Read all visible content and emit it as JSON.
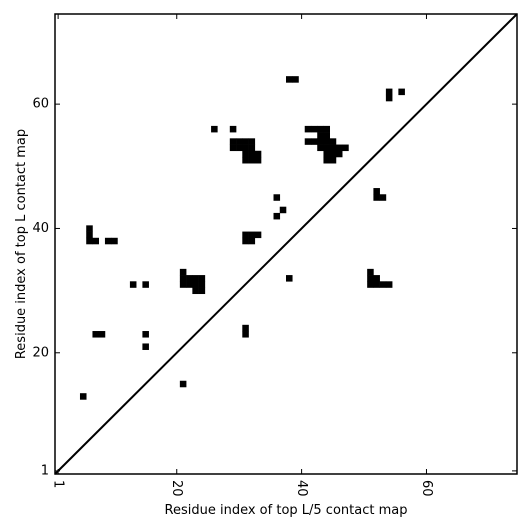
{
  "chart_data": {
    "type": "scatter",
    "marker": "square",
    "xlabel": "Residue index of top L/5 contact map",
    "ylabel": "Residue index of top L contact map",
    "xlim": [
      0.5,
      74.5
    ],
    "ylim": [
      0.5,
      74.5
    ],
    "xticks": [
      1,
      20,
      40,
      60
    ],
    "yticks": [
      1,
      20,
      40,
      60
    ],
    "diagonal": true,
    "series": [
      {
        "color": "#000000",
        "x": [
          5,
          21,
          15,
          15,
          7,
          8,
          13,
          15,
          21,
          21,
          22,
          23,
          24,
          21,
          22,
          23,
          24,
          23,
          24,
          31,
          31,
          38,
          6,
          6,
          6,
          7,
          9,
          10,
          31,
          31,
          32,
          32,
          33,
          36,
          37,
          36,
          26,
          29,
          29,
          29,
          30,
          30,
          31,
          31,
          32,
          32,
          31,
          31,
          32,
          32,
          33,
          33,
          38,
          39,
          41,
          42,
          43,
          44,
          43,
          44,
          41,
          42,
          43,
          44,
          45,
          43,
          44,
          45,
          46,
          47,
          44,
          45,
          46,
          44,
          45,
          54,
          54,
          56,
          52,
          52,
          53,
          51,
          51,
          52,
          51,
          52,
          53,
          54
        ],
        "values": [
          13,
          15,
          21,
          23,
          23,
          23,
          31,
          31,
          33,
          32,
          32,
          32,
          32,
          31,
          31,
          31,
          31,
          30,
          30,
          23,
          24,
          32,
          38,
          39,
          40,
          38,
          38,
          38,
          38,
          39,
          38,
          39,
          39,
          42,
          43,
          45,
          56,
          56,
          54,
          53,
          54,
          53,
          54,
          53,
          54,
          53,
          52,
          51,
          52,
          51,
          52,
          51,
          64,
          64,
          56,
          56,
          56,
          56,
          55,
          55,
          54,
          54,
          54,
          54,
          54,
          53,
          53,
          53,
          53,
          53,
          52,
          52,
          52,
          51,
          51,
          61,
          62,
          62,
          45,
          46,
          45,
          33,
          32,
          32,
          31,
          31,
          31,
          31
        ]
      }
    ]
  }
}
